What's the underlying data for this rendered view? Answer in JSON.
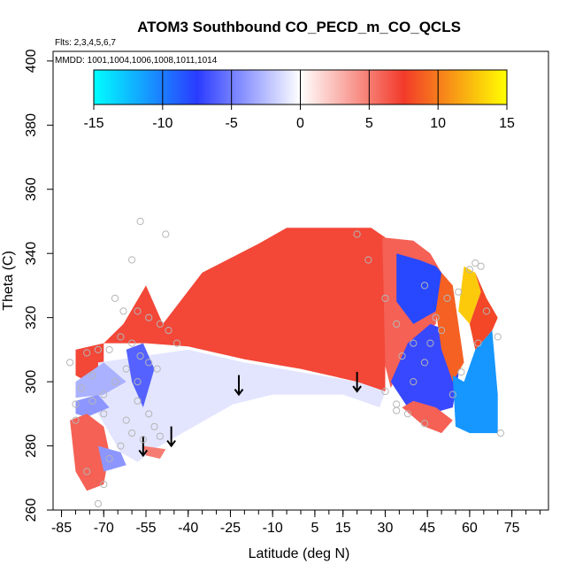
{
  "chart_data": {
    "type": "heatmap",
    "title": "ATOM3 Southbound CO_PECD_m_CO_QCLS",
    "flights_note": "Flts: 2,3,4,5,6,7",
    "dates_note": "MMDD: 1001,1004,1006,1008,1011,1014",
    "xlabel": "Latitude (deg N)",
    "ylabel": "Theta (C)",
    "xlim": [
      -88,
      88
    ],
    "ylim": [
      260,
      403
    ],
    "x_ticks": [
      -85,
      -70,
      -55,
      -40,
      -25,
      -10,
      5,
      15,
      30,
      45,
      60,
      75
    ],
    "x_minor_step": 5,
    "y_ticks": [
      260,
      280,
      300,
      320,
      340,
      360,
      380,
      400
    ],
    "colorbar": {
      "ticks": [
        -15,
        -10,
        -5,
        0,
        5,
        10,
        15
      ],
      "range": [
        -15,
        15
      ],
      "stops": [
        "#00ffff",
        "#2a3bff",
        "#ffffff",
        "#f23a2a",
        "#ffff00"
      ]
    },
    "arrow_latitudes": [
      -56,
      -46,
      -22,
      20
    ],
    "field_regions": [
      {
        "name": "upper-tropospheric-band",
        "value": 7,
        "polygon": [
          [
            -70,
            312
          ],
          [
            -63,
            318
          ],
          [
            -55,
            330
          ],
          [
            -49,
            318
          ],
          [
            -35,
            334
          ],
          [
            -15,
            343
          ],
          [
            -5,
            348
          ],
          [
            25,
            348
          ],
          [
            30,
            345
          ],
          [
            30,
            297
          ],
          [
            20,
            300
          ],
          [
            0,
            304
          ],
          [
            -20,
            307
          ],
          [
            -40,
            311
          ],
          [
            -55,
            312
          ],
          [
            -70,
            312
          ]
        ]
      },
      {
        "name": "southern-edge-band",
        "value": 7,
        "polygon": [
          [
            -80,
            310
          ],
          [
            -70,
            312
          ],
          [
            -70,
            305
          ],
          [
            -76,
            300
          ],
          [
            -80,
            302
          ]
        ]
      },
      {
        "name": "lower-tropospheric-layer",
        "value": -1,
        "polygon": [
          [
            -72,
            306
          ],
          [
            -40,
            310
          ],
          [
            -20,
            306
          ],
          [
            0,
            303
          ],
          [
            20,
            300
          ],
          [
            30,
            297
          ],
          [
            28,
            292
          ],
          [
            15,
            296
          ],
          [
            -10,
            296
          ],
          [
            -24,
            293
          ],
          [
            -40,
            285
          ],
          [
            -52,
            279
          ],
          [
            -58,
            275
          ],
          [
            -64,
            278
          ],
          [
            -72,
            290
          ]
        ]
      },
      {
        "name": "southern-polar-blue",
        "value": -4,
        "polygon": [
          [
            -80,
            294
          ],
          [
            -72,
            296
          ],
          [
            -68,
            292
          ],
          [
            -76,
            289
          ],
          [
            -80,
            290
          ]
        ]
      },
      {
        "name": "southern-surface-red",
        "value": 6,
        "polygon": [
          [
            -82,
            288
          ],
          [
            -76,
            290
          ],
          [
            -70,
            286
          ],
          [
            -68,
            278
          ],
          [
            -70,
            268
          ],
          [
            -76,
            266
          ],
          [
            -80,
            272
          ]
        ]
      },
      {
        "name": "southern-surface-red-2",
        "value": 5,
        "polygon": [
          [
            -56,
            280
          ],
          [
            -48,
            279
          ],
          [
            -50,
            276
          ],
          [
            -55,
            277
          ]
        ]
      },
      {
        "name": "southern-surface-blue",
        "value": -4,
        "polygon": [
          [
            -72,
            280
          ],
          [
            -64,
            278
          ],
          [
            -62,
            274
          ],
          [
            -70,
            272
          ]
        ]
      },
      {
        "name": "southern-spire-blue",
        "value": -6,
        "polygon": [
          [
            -62,
            310
          ],
          [
            -56,
            312
          ],
          [
            -52,
            304
          ],
          [
            -56,
            292
          ],
          [
            -60,
            300
          ]
        ]
      },
      {
        "name": "southern-blue-tongue",
        "value": -3,
        "polygon": [
          [
            -80,
            300
          ],
          [
            -70,
            306
          ],
          [
            -62,
            300
          ],
          [
            -70,
            296
          ],
          [
            -80,
            295
          ]
        ]
      },
      {
        "name": "tropical-warm-column",
        "value": 6,
        "polygon": [
          [
            29,
            345
          ],
          [
            40,
            344
          ],
          [
            46,
            340
          ],
          [
            50,
            334
          ],
          [
            48,
            318
          ],
          [
            38,
            310
          ],
          [
            32,
            298
          ],
          [
            30,
            305
          ]
        ]
      },
      {
        "name": "nh-blue-upper",
        "value": -8,
        "polygon": [
          [
            34,
            340
          ],
          [
            42,
            338
          ],
          [
            48,
            336
          ],
          [
            52,
            332
          ],
          [
            48,
            322
          ],
          [
            40,
            318
          ],
          [
            34,
            325
          ]
        ]
      },
      {
        "name": "nh-blue-middle",
        "value": -7,
        "polygon": [
          [
            32,
            300
          ],
          [
            38,
            312
          ],
          [
            46,
            318
          ],
          [
            52,
            316
          ],
          [
            56,
            302
          ],
          [
            54,
            292
          ],
          [
            46,
            290
          ],
          [
            38,
            292
          ]
        ]
      },
      {
        "name": "nh-orange-diagonal",
        "value": 9,
        "polygon": [
          [
            50,
            334
          ],
          [
            54,
            330
          ],
          [
            56,
            318
          ],
          [
            58,
            306
          ],
          [
            54,
            300
          ],
          [
            50,
            310
          ],
          [
            48,
            322
          ]
        ]
      },
      {
        "name": "nh-yellow-core",
        "value": 13,
        "polygon": [
          [
            58,
            336
          ],
          [
            62,
            334
          ],
          [
            64,
            328
          ],
          [
            60,
            318
          ],
          [
            56,
            322
          ]
        ]
      },
      {
        "name": "nh-red-lower",
        "value": 6,
        "polygon": [
          [
            36,
            292
          ],
          [
            44,
            286
          ],
          [
            50,
            284
          ],
          [
            54,
            288
          ],
          [
            48,
            292
          ],
          [
            40,
            294
          ]
        ]
      },
      {
        "name": "nh-deep-blue-lower",
        "value": -11,
        "polygon": [
          [
            54,
            302
          ],
          [
            58,
            300
          ],
          [
            62,
            310
          ],
          [
            68,
            316
          ],
          [
            70,
            296
          ],
          [
            70,
            284
          ],
          [
            60,
            284
          ],
          [
            55,
            286
          ]
        ]
      },
      {
        "name": "nh-warm-ridge",
        "value": 8,
        "polygon": [
          [
            62,
            334
          ],
          [
            66,
            326
          ],
          [
            70,
            320
          ],
          [
            68,
            316
          ],
          [
            62,
            310
          ],
          [
            60,
            318
          ],
          [
            64,
            328
          ]
        ]
      }
    ],
    "sample_points": [
      [
        -57,
        350
      ],
      [
        -48,
        346
      ],
      [
        -60,
        338
      ],
      [
        -66,
        326
      ],
      [
        -63,
        322
      ],
      [
        -58,
        322
      ],
      [
        -54,
        320
      ],
      [
        -50,
        318
      ],
      [
        -47,
        316
      ],
      [
        -44,
        312
      ],
      [
        -64,
        314
      ],
      [
        -60,
        312
      ],
      [
        -57,
        308
      ],
      [
        -54,
        306
      ],
      [
        -51,
        304
      ],
      [
        -62,
        304
      ],
      [
        -58,
        300
      ],
      [
        -66,
        300
      ],
      [
        -70,
        296
      ],
      [
        -74,
        294
      ],
      [
        -80,
        293
      ],
      [
        -78,
        298
      ],
      [
        -70,
        290
      ],
      [
        -62,
        288
      ],
      [
        -58,
        294
      ],
      [
        -54,
        290
      ],
      [
        -52,
        286
      ],
      [
        -50,
        283
      ],
      [
        -56,
        282
      ],
      [
        -60,
        284
      ],
      [
        -64,
        280
      ],
      [
        -68,
        276
      ],
      [
        -70,
        268
      ],
      [
        -72,
        262
      ],
      [
        -76,
        272
      ],
      [
        -80,
        288
      ],
      [
        -82,
        306
      ],
      [
        -76,
        309
      ],
      [
        -72,
        310
      ],
      [
        -68,
        310
      ],
      [
        -74,
        302
      ],
      [
        20,
        346
      ],
      [
        24,
        338
      ],
      [
        30,
        326
      ],
      [
        34,
        318
      ],
      [
        34,
        291
      ],
      [
        40,
        300
      ],
      [
        44,
        306
      ],
      [
        48,
        320
      ],
      [
        52,
        326
      ],
      [
        56,
        328
      ],
      [
        60,
        335
      ],
      [
        62,
        337
      ],
      [
        64,
        336
      ],
      [
        50,
        316
      ],
      [
        46,
        312
      ],
      [
        40,
        312
      ],
      [
        44,
        330
      ],
      [
        30,
        297
      ],
      [
        36,
        308
      ],
      [
        70,
        314
      ],
      [
        71,
        284
      ],
      [
        66,
        322
      ],
      [
        63,
        312
      ],
      [
        57,
        303
      ],
      [
        54,
        296
      ],
      [
        44,
        287
      ],
      [
        38,
        290
      ],
      [
        34,
        293
      ]
    ]
  }
}
